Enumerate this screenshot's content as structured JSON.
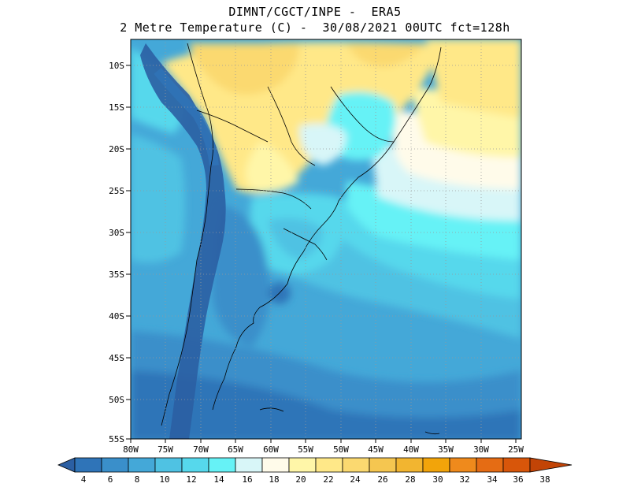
{
  "header": {
    "line1": "DIMNT/CGCT/INPE -  ERA5",
    "line2": "2 Metre Temperature (C) -  30/08/2021 00UTC fct=128h"
  },
  "map": {
    "lat_labels": [
      "10S",
      "15S",
      "20S",
      "25S",
      "30S",
      "35S",
      "40S",
      "45S",
      "50S",
      "55S"
    ],
    "lon_labels": [
      "80W",
      "75W",
      "70W",
      "65W",
      "60W",
      "55W",
      "50W",
      "45W",
      "40W",
      "35W",
      "30W",
      "25W"
    ]
  },
  "colorbar": {
    "labels": [
      "4",
      "6",
      "8",
      "10",
      "12",
      "14",
      "16",
      "18",
      "20",
      "22",
      "24",
      "26",
      "28",
      "30",
      "32",
      "34",
      "36",
      "38"
    ],
    "colors": [
      "#2b5fa3",
      "#2f74b8",
      "#3a8fca",
      "#44a8d8",
      "#4fc2e3",
      "#56d8ec",
      "#66f2f6",
      "#d8f6f8",
      "#fffbea",
      "#fff6a8",
      "#ffe888",
      "#fbd970",
      "#f5c650",
      "#f2b530",
      "#f2a40a",
      "#ef8a1c",
      "#e56c14",
      "#d8560a",
      "#c24406"
    ]
  }
}
